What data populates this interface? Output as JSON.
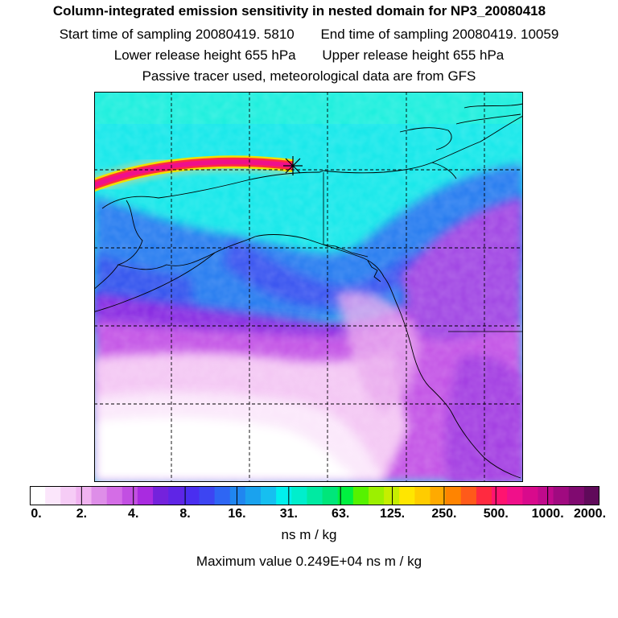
{
  "header": {
    "title": "Column-integrated emission sensitivity in nested domain for NP3_20080418",
    "start_time": "Start time of sampling 20080419.  5810",
    "end_time": "End time of sampling 20080419. 10059",
    "lower_release": "Lower release height  655 hPa",
    "upper_release": "Upper release height  655 hPa",
    "tracer_info": "Passive tracer used, meteorological data are from GFS"
  },
  "colorbar": {
    "tick_labels": [
      "0.",
      "2.",
      "4.",
      "8.",
      "16.",
      "31.",
      "63.",
      "125.",
      "250.",
      "500.",
      "1000.",
      "2000."
    ],
    "units": "ns m / kg",
    "max_value": "Maximum value  0.249E+04 ns m / kg",
    "colors": [
      "#ffffff",
      "#fbe6fb",
      "#f6ccf6",
      "#f0b3f0",
      "#de8ee8",
      "#d46de6",
      "#c24fe2",
      "#a92be0",
      "#7422dc",
      "#5f25e6",
      "#4a2ef0",
      "#3d45f2",
      "#2e66f4",
      "#2086f0",
      "#1aa2ee",
      "#16bff0",
      "#00f0ee",
      "#00eecc",
      "#00eaa2",
      "#00e67a",
      "#00f040",
      "#56f200",
      "#9cf000",
      "#c6ee00",
      "#ffe600",
      "#ffcc00",
      "#ffaa00",
      "#ff8400",
      "#ff5a1a",
      "#ff2a40",
      "#ff1470",
      "#f0108a",
      "#d80a8c",
      "#c00a8c",
      "#a00a80",
      "#800a70",
      "#600a5a"
    ]
  },
  "map": {
    "release_marker": "asterisk",
    "features": [
      "coastlines",
      "borders",
      "gridlines"
    ]
  }
}
